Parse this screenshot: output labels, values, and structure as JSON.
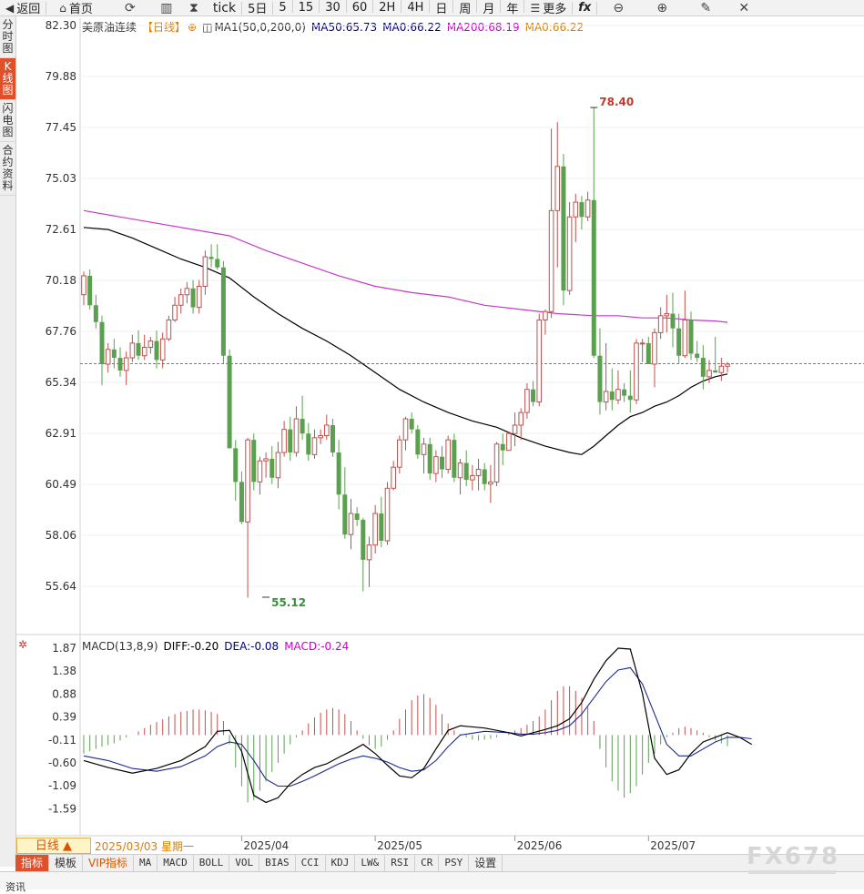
{
  "toolbar": {
    "back": "返回",
    "home": "首页",
    "tick": "tick",
    "five_day": "5日",
    "periods": [
      "5",
      "15",
      "30",
      "60",
      "2H",
      "4H",
      "日",
      "周",
      "月",
      "年"
    ],
    "more": "更多",
    "fx": "fx"
  },
  "sidebar": [
    "分时图",
    "K线图",
    "闪电图",
    "合约资料"
  ],
  "legend": {
    "name": "美原油连续",
    "period": "【日线】",
    "ma_params": "MA1(50,0,200,0)",
    "ma50": "MA50:65.73",
    "ma0": "MA0:66.22",
    "ma200": "MA200:68.19",
    "ma0b": "MA0:66.22",
    "colors": {
      "ma50": "#000080",
      "ma0": "#000080",
      "ma200": "#cc00cc",
      "ma0b": "#e08000"
    }
  },
  "macd_legend": {
    "title": "MACD(13,8,9)",
    "diff": "DIFF:-0.20",
    "dea": "DEA:-0.08",
    "macd": "MACD:-0.24"
  },
  "bottom": {
    "period_btn": "日线 ▲",
    "date": "2025/03/03 星期一"
  },
  "indicators": [
    "指标",
    "模板",
    "VIP指标",
    "MA",
    "MACD",
    "BOLL",
    "VOL",
    "BIAS",
    "CCI",
    "KDJ",
    "LW&",
    "RSI",
    "CR",
    "PSY",
    "设置"
  ],
  "footer": "资讯",
  "watermark": "FX678",
  "chart_data": {
    "type": "candlestick",
    "yaxis": {
      "labels": [
        "82.30",
        "79.88",
        "77.45",
        "75.03",
        "72.61",
        "70.18",
        "67.76",
        "65.34",
        "62.91",
        "60.49",
        "58.06",
        "55.64"
      ],
      "range": [
        54.6,
        82.3
      ]
    },
    "xaxis_labels": [
      "2025/04",
      "2025/05",
      "2025/06",
      "2025/07"
    ],
    "xaxis_label_index": [
      26,
      48,
      71,
      93
    ],
    "last_price": 66.22,
    "high_annotation": {
      "label": "78.40",
      "value": 78.4,
      "index": 84
    },
    "low_annotation": {
      "label": "55.12",
      "value": 55.12,
      "index": 30
    },
    "colors": {
      "up": "#c0504d",
      "down": "#5aa050",
      "ma50": "#000000",
      "ma200": "#c838c8"
    },
    "candles": [
      [
        69.5,
        70.6,
        69.0,
        70.4
      ],
      [
        70.4,
        70.7,
        68.8,
        69.0
      ],
      [
        69.0,
        69.5,
        67.9,
        68.2
      ],
      [
        68.2,
        68.5,
        65.2,
        66.2
      ],
      [
        66.2,
        67.2,
        65.8,
        66.9
      ],
      [
        66.9,
        67.4,
        66.0,
        66.5
      ],
      [
        66.5,
        67.0,
        65.6,
        65.9
      ],
      [
        65.9,
        66.8,
        65.2,
        66.5
      ],
      [
        66.5,
        67.6,
        66.3,
        67.2
      ],
      [
        67.2,
        67.8,
        66.4,
        66.6
      ],
      [
        66.6,
        67.6,
        66.4,
        67.0
      ],
      [
        67.0,
        67.5,
        66.7,
        67.3
      ],
      [
        67.3,
        67.8,
        66.0,
        66.4
      ],
      [
        66.4,
        67.7,
        66.0,
        67.4
      ],
      [
        67.4,
        68.5,
        67.3,
        68.3
      ],
      [
        68.3,
        69.4,
        68.2,
        69.0
      ],
      [
        69.0,
        69.8,
        68.6,
        69.5
      ],
      [
        69.5,
        70.1,
        69.1,
        69.8
      ],
      [
        69.8,
        70.2,
        68.6,
        68.9
      ],
      [
        68.9,
        70.2,
        68.6,
        69.9
      ],
      [
        69.9,
        71.6,
        69.5,
        71.3
      ],
      [
        71.3,
        71.9,
        70.8,
        71.2
      ],
      [
        71.2,
        71.9,
        70.7,
        70.8
      ],
      [
        70.8,
        71.1,
        66.2,
        66.6
      ],
      [
        66.6,
        66.9,
        62.2,
        62.2
      ],
      [
        62.2,
        62.6,
        59.7,
        60.6
      ],
      [
        60.6,
        61.1,
        58.6,
        58.7
      ],
      [
        58.7,
        62.7,
        55.1,
        62.6
      ],
      [
        62.6,
        62.9,
        60.2,
        60.6
      ],
      [
        60.6,
        61.8,
        60.0,
        61.6
      ],
      [
        61.6,
        62.0,
        60.8,
        61.7
      ],
      [
        61.7,
        62.3,
        60.5,
        60.8
      ],
      [
        60.8,
        62.5,
        60.3,
        62.0
      ],
      [
        62.0,
        63.5,
        61.8,
        63.1
      ],
      [
        63.1,
        63.7,
        61.6,
        62.0
      ],
      [
        62.0,
        64.2,
        61.8,
        63.6
      ],
      [
        63.6,
        64.7,
        62.6,
        62.9
      ],
      [
        62.9,
        63.4,
        61.6,
        61.9
      ],
      [
        61.9,
        63.1,
        61.7,
        62.7
      ],
      [
        62.7,
        63.1,
        62.4,
        62.8
      ],
      [
        62.8,
        63.8,
        62.6,
        63.3
      ],
      [
        63.3,
        63.6,
        61.8,
        62.0
      ],
      [
        62.0,
        62.6,
        59.3,
        60.0
      ],
      [
        60.0,
        61.3,
        57.9,
        58.1
      ],
      [
        58.1,
        59.8,
        57.4,
        59.1
      ],
      [
        59.1,
        59.4,
        58.5,
        58.8
      ],
      [
        58.8,
        58.9,
        55.4,
        56.9
      ],
      [
        56.9,
        58.0,
        55.6,
        57.6
      ],
      [
        57.6,
        59.5,
        57.2,
        59.1
      ],
      [
        59.1,
        59.9,
        57.5,
        57.8
      ],
      [
        57.8,
        60.6,
        57.6,
        60.3
      ],
      [
        60.3,
        61.6,
        60.2,
        61.3
      ],
      [
        61.3,
        62.8,
        61.0,
        62.6
      ],
      [
        62.6,
        63.7,
        62.1,
        63.6
      ],
      [
        63.6,
        63.9,
        62.9,
        63.1
      ],
      [
        63.1,
        63.3,
        61.7,
        61.9
      ],
      [
        61.9,
        62.7,
        61.0,
        62.4
      ],
      [
        62.4,
        62.7,
        60.7,
        61.0
      ],
      [
        61.0,
        62.1,
        60.6,
        61.8
      ],
      [
        61.8,
        62.3,
        60.8,
        61.2
      ],
      [
        61.2,
        62.8,
        61.0,
        62.6
      ],
      [
        62.6,
        62.9,
        60.6,
        60.8
      ],
      [
        60.8,
        61.7,
        60.0,
        61.5
      ],
      [
        61.5,
        62.1,
        60.4,
        60.7
      ],
      [
        60.7,
        61.4,
        60.2,
        60.9
      ],
      [
        60.9,
        61.7,
        60.2,
        61.2
      ],
      [
        61.2,
        61.5,
        60.2,
        60.5
      ],
      [
        60.5,
        61.4,
        59.6,
        60.6
      ],
      [
        60.6,
        62.5,
        60.4,
        62.4
      ],
      [
        62.4,
        62.9,
        61.4,
        62.1
      ],
      [
        62.1,
        63.0,
        62.2,
        62.9
      ],
      [
        62.9,
        63.9,
        62.3,
        63.3
      ],
      [
        63.3,
        64.1,
        62.6,
        63.9
      ],
      [
        63.9,
        65.3,
        63.6,
        65.0
      ],
      [
        65.0,
        65.4,
        64.2,
        64.4
      ],
      [
        64.4,
        68.6,
        64.2,
        68.3
      ],
      [
        68.3,
        68.8,
        67.6,
        68.7
      ],
      [
        68.7,
        77.4,
        68.4,
        73.5
      ],
      [
        73.5,
        77.7,
        70.8,
        75.6
      ],
      [
        75.6,
        76.2,
        69.0,
        69.7
      ],
      [
        69.7,
        73.9,
        69.5,
        73.2
      ],
      [
        73.2,
        74.3,
        72.0,
        73.9
      ],
      [
        73.9,
        74.2,
        72.6,
        73.2
      ],
      [
        73.2,
        74.4,
        73.0,
        74.0
      ],
      [
        74.0,
        78.4,
        66.5,
        66.6
      ],
      [
        66.6,
        67.9,
        63.8,
        64.4
      ],
      [
        64.4,
        67.2,
        64.0,
        64.9
      ],
      [
        64.9,
        66.0,
        64.0,
        64.5
      ],
      [
        64.5,
        65.9,
        64.3,
        65.0
      ],
      [
        65.0,
        65.3,
        64.4,
        64.7
      ],
      [
        64.7,
        65.9,
        63.9,
        64.5
      ],
      [
        64.5,
        67.4,
        64.3,
        67.2
      ],
      [
        67.2,
        67.4,
        66.3,
        67.2
      ],
      [
        67.2,
        67.5,
        66.2,
        66.2
      ],
      [
        66.2,
        67.9,
        65.1,
        67.7
      ],
      [
        67.7,
        68.9,
        67.4,
        68.5
      ],
      [
        68.5,
        69.5,
        67.7,
        68.6
      ],
      [
        68.6,
        69.6,
        67.0,
        67.9
      ],
      [
        67.9,
        68.6,
        66.2,
        66.6
      ],
      [
        66.6,
        69.7,
        66.5,
        68.3
      ],
      [
        68.3,
        68.7,
        66.4,
        66.7
      ],
      [
        66.7,
        67.3,
        66.3,
        66.5
      ],
      [
        66.5,
        67.1,
        65.0,
        65.6
      ],
      [
        65.6,
        66.4,
        65.3,
        65.9
      ],
      [
        65.9,
        67.5,
        65.8,
        65.8
      ],
      [
        65.8,
        66.5,
        65.4,
        66.1
      ],
      [
        66.1,
        66.3,
        65.8,
        66.2
      ]
    ],
    "ma50": [
      [
        0,
        72.7
      ],
      [
        4,
        72.6
      ],
      [
        8,
        72.2
      ],
      [
        12,
        71.7
      ],
      [
        16,
        71.2
      ],
      [
        20,
        70.8
      ],
      [
        24,
        70.3
      ],
      [
        28,
        69.4
      ],
      [
        32,
        68.6
      ],
      [
        36,
        67.9
      ],
      [
        40,
        67.3
      ],
      [
        44,
        66.6
      ],
      [
        48,
        65.8
      ],
      [
        52,
        65.0
      ],
      [
        56,
        64.4
      ],
      [
        60,
        63.9
      ],
      [
        64,
        63.5
      ],
      [
        68,
        63.2
      ],
      [
        72,
        62.7
      ],
      [
        76,
        62.3
      ],
      [
        80,
        62.0
      ],
      [
        82,
        61.9
      ],
      [
        84,
        62.3
      ],
      [
        86,
        62.8
      ],
      [
        88,
        63.3
      ],
      [
        90,
        63.7
      ],
      [
        92,
        63.9
      ],
      [
        94,
        64.2
      ],
      [
        96,
        64.4
      ],
      [
        98,
        64.7
      ],
      [
        100,
        65.1
      ],
      [
        102,
        65.4
      ],
      [
        104,
        65.6
      ],
      [
        106,
        65.73
      ]
    ],
    "ma200": [
      [
        0,
        73.5
      ],
      [
        6,
        73.2
      ],
      [
        12,
        72.9
      ],
      [
        18,
        72.6
      ],
      [
        24,
        72.3
      ],
      [
        30,
        71.6
      ],
      [
        36,
        71.0
      ],
      [
        42,
        70.4
      ],
      [
        48,
        69.9
      ],
      [
        54,
        69.6
      ],
      [
        60,
        69.4
      ],
      [
        66,
        69.0
      ],
      [
        72,
        68.8
      ],
      [
        78,
        68.6
      ],
      [
        84,
        68.5
      ],
      [
        88,
        68.5
      ],
      [
        92,
        68.4
      ],
      [
        96,
        68.4
      ],
      [
        100,
        68.3
      ],
      [
        104,
        68.25
      ],
      [
        106,
        68.19
      ]
    ],
    "macd": {
      "yaxis": {
        "labels": [
          "1.87",
          "1.38",
          "0.88",
          "0.39",
          "-0.11",
          "-0.60",
          "-1.09",
          "-1.59"
        ],
        "range": [
          -2.09,
          1.87
        ]
      },
      "hist": [
        -0.4,
        -0.35,
        -0.3,
        -0.25,
        -0.22,
        -0.18,
        -0.12,
        -0.05,
        0.0,
        0.08,
        0.15,
        0.22,
        0.28,
        0.34,
        0.4,
        0.45,
        0.5,
        0.52,
        0.55,
        0.55,
        0.53,
        0.5,
        0.45,
        0.3,
        -0.2,
        -0.7,
        -1.1,
        -1.45,
        -1.4,
        -1.2,
        -1.0,
        -0.8,
        -0.6,
        -0.4,
        -0.2,
        -0.05,
        0.1,
        0.25,
        0.38,
        0.48,
        0.55,
        0.58,
        0.55,
        0.45,
        0.3,
        0.1,
        -0.08,
        -0.22,
        -0.3,
        -0.25,
        -0.1,
        0.1,
        0.35,
        0.55,
        0.75,
        0.85,
        0.88,
        0.8,
        0.65,
        0.45,
        0.25,
        0.1,
        0.02,
        -0.05,
        -0.1,
        -0.12,
        -0.1,
        -0.08,
        -0.05,
        0.0,
        0.05,
        0.1,
        0.15,
        0.22,
        0.3,
        0.4,
        0.55,
        0.75,
        0.95,
        1.05,
        1.05,
        0.95,
        0.8,
        0.6,
        0.3,
        -0.3,
        -0.7,
        -1.0,
        -1.2,
        -1.35,
        -1.25,
        -1.1,
        -0.85,
        -0.6,
        -0.4,
        -0.2,
        -0.05,
        0.05,
        0.15,
        0.18,
        0.15,
        0.1,
        0.05,
        -0.05,
        -0.12,
        -0.18,
        -0.24
      ],
      "diff": [
        [
          0,
          -0.55
        ],
        [
          4,
          -0.7
        ],
        [
          8,
          -0.82
        ],
        [
          12,
          -0.72
        ],
        [
          16,
          -0.55
        ],
        [
          20,
          -0.25
        ],
        [
          22,
          0.08
        ],
        [
          24,
          0.1
        ],
        [
          26,
          -0.35
        ],
        [
          28,
          -1.3
        ],
        [
          30,
          -1.45
        ],
        [
          32,
          -1.35
        ],
        [
          34,
          -1.05
        ],
        [
          36,
          -0.85
        ],
        [
          38,
          -0.7
        ],
        [
          40,
          -0.62
        ],
        [
          42,
          -0.48
        ],
        [
          44,
          -0.35
        ],
        [
          46,
          -0.2
        ],
        [
          48,
          -0.4
        ],
        [
          50,
          -0.65
        ],
        [
          52,
          -0.88
        ],
        [
          54,
          -0.92
        ],
        [
          56,
          -0.72
        ],
        [
          58,
          -0.3
        ],
        [
          60,
          0.1
        ],
        [
          62,
          0.2
        ],
        [
          66,
          0.15
        ],
        [
          70,
          0.05
        ],
        [
          72,
          -0.02
        ],
        [
          74,
          0.05
        ],
        [
          76,
          0.12
        ],
        [
          78,
          0.2
        ],
        [
          80,
          0.35
        ],
        [
          82,
          0.7
        ],
        [
          84,
          1.2
        ],
        [
          86,
          1.6
        ],
        [
          88,
          1.87
        ],
        [
          90,
          1.85
        ],
        [
          92,
          0.9
        ],
        [
          94,
          -0.5
        ],
        [
          96,
          -0.85
        ],
        [
          98,
          -0.75
        ],
        [
          100,
          -0.4
        ],
        [
          102,
          -0.15
        ],
        [
          104,
          -0.05
        ],
        [
          106,
          0.05
        ],
        [
          108,
          -0.05
        ],
        [
          110,
          -0.2
        ]
      ],
      "dea": [
        [
          0,
          -0.45
        ],
        [
          4,
          -0.55
        ],
        [
          8,
          -0.72
        ],
        [
          12,
          -0.78
        ],
        [
          16,
          -0.68
        ],
        [
          20,
          -0.45
        ],
        [
          22,
          -0.25
        ],
        [
          24,
          -0.15
        ],
        [
          26,
          -0.2
        ],
        [
          28,
          -0.55
        ],
        [
          30,
          -0.95
        ],
        [
          32,
          -1.1
        ],
        [
          34,
          -1.1
        ],
        [
          36,
          -1.0
        ],
        [
          38,
          -0.88
        ],
        [
          40,
          -0.75
        ],
        [
          42,
          -0.62
        ],
        [
          44,
          -0.52
        ],
        [
          46,
          -0.45
        ],
        [
          48,
          -0.5
        ],
        [
          50,
          -0.58
        ],
        [
          52,
          -0.7
        ],
        [
          54,
          -0.78
        ],
        [
          56,
          -0.75
        ],
        [
          58,
          -0.55
        ],
        [
          60,
          -0.25
        ],
        [
          62,
          0.0
        ],
        [
          66,
          0.08
        ],
        [
          70,
          0.05
        ],
        [
          72,
          0.02
        ],
        [
          74,
          0.02
        ],
        [
          76,
          0.05
        ],
        [
          78,
          0.1
        ],
        [
          80,
          0.2
        ],
        [
          82,
          0.45
        ],
        [
          84,
          0.8
        ],
        [
          86,
          1.15
        ],
        [
          88,
          1.4
        ],
        [
          90,
          1.45
        ],
        [
          92,
          1.1
        ],
        [
          94,
          0.45
        ],
        [
          96,
          -0.2
        ],
        [
          98,
          -0.45
        ],
        [
          100,
          -0.45
        ],
        [
          102,
          -0.3
        ],
        [
          104,
          -0.15
        ],
        [
          106,
          -0.05
        ],
        [
          108,
          -0.05
        ],
        [
          110,
          -0.08
        ]
      ]
    }
  }
}
